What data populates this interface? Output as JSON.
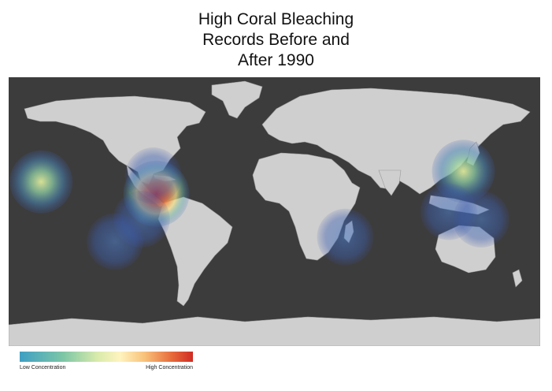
{
  "title": {
    "line1": "High Coral Bleaching",
    "line2": "Records Before and",
    "line3": "After 1990"
  },
  "legend": {
    "low_label": "Low Concentration",
    "high_label": "High Concentration",
    "colors": [
      "#3f9fc3",
      "#7cc6a6",
      "#fff3bf",
      "#f8c27a",
      "#d02b24"
    ]
  },
  "map": {
    "projection": "equirectangular",
    "basemap": "grayscale-relief",
    "hotspots": [
      {
        "region": "Caribbean / Central America",
        "lon": -80,
        "lat": 12,
        "intensity": "high"
      },
      {
        "region": "Hawaii",
        "lon": -158,
        "lat": 20,
        "intensity": "medium"
      },
      {
        "region": "Gulf of Mexico / Florida",
        "lon": -82,
        "lat": 24,
        "intensity": "low"
      },
      {
        "region": "Eastern Pacific (Galapagos)",
        "lon": -90,
        "lat": -5,
        "intensity": "low"
      },
      {
        "region": "Southeast Pacific",
        "lon": -108,
        "lat": -20,
        "intensity": "low"
      },
      {
        "region": "Madagascar / Mozambique Channel",
        "lon": 48,
        "lat": -17,
        "intensity": "low"
      },
      {
        "region": "Japan / Okinawa",
        "lon": 128,
        "lat": 27,
        "intensity": "medium"
      },
      {
        "region": "Indonesia / Philippines",
        "lon": 118,
        "lat": 0,
        "intensity": "low"
      },
      {
        "region": "Australia",
        "lon": 140,
        "lat": -5,
        "intensity": "low"
      }
    ]
  }
}
